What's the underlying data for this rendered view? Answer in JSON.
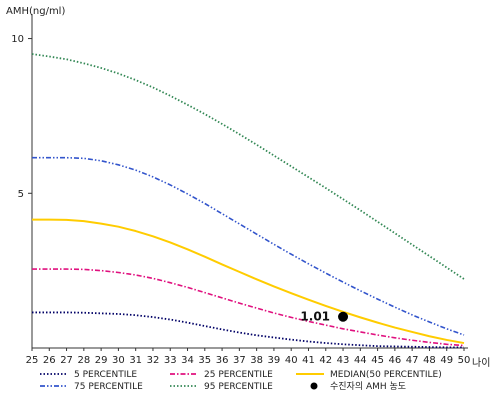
{
  "chart_data": {
    "type": "line",
    "ylabel": "AMH(ng/ml)",
    "xlabel": "나이",
    "x": [
      25,
      26,
      27,
      28,
      29,
      30,
      31,
      32,
      33,
      34,
      35,
      36,
      37,
      38,
      39,
      40,
      41,
      42,
      43,
      44,
      45,
      46,
      47,
      48,
      49,
      50
    ],
    "ylim": [
      0,
      10.6
    ],
    "yticks": [
      5,
      10
    ],
    "series": [
      {
        "name": "5 PERCENTILE",
        "color": "#000066",
        "dash": "dot",
        "values": [
          1.15,
          1.15,
          1.15,
          1.14,
          1.12,
          1.1,
          1.06,
          1.0,
          0.92,
          0.82,
          0.71,
          0.6,
          0.5,
          0.41,
          0.34,
          0.27,
          0.21,
          0.16,
          0.12,
          0.09,
          0.06,
          0.05,
          0.04,
          0.03,
          0.02,
          0.02
        ]
      },
      {
        "name": "25 PERCENTILE",
        "color": "#e0117f",
        "dash": "dashdot",
        "values": [
          2.55,
          2.55,
          2.55,
          2.54,
          2.5,
          2.44,
          2.36,
          2.25,
          2.11,
          1.96,
          1.79,
          1.62,
          1.45,
          1.29,
          1.13,
          0.99,
          0.86,
          0.74,
          0.62,
          0.52,
          0.42,
          0.33,
          0.25,
          0.18,
          0.12,
          0.08
        ]
      },
      {
        "name": "MEDIAN(50 PERCENTILE)",
        "color": "#ffcc00",
        "dash": "solid",
        "values": [
          4.15,
          4.15,
          4.14,
          4.1,
          4.02,
          3.92,
          3.78,
          3.61,
          3.41,
          3.19,
          2.95,
          2.7,
          2.46,
          2.22,
          1.99,
          1.77,
          1.56,
          1.36,
          1.17,
          0.99,
          0.82,
          0.66,
          0.52,
          0.38,
          0.26,
          0.16
        ]
      },
      {
        "name": "75 PERCENTILE",
        "color": "#3355cc",
        "dash": "dashdotdot",
        "values": [
          6.15,
          6.15,
          6.15,
          6.13,
          6.05,
          5.92,
          5.75,
          5.53,
          5.27,
          4.98,
          4.67,
          4.34,
          4.01,
          3.68,
          3.35,
          3.03,
          2.72,
          2.42,
          2.13,
          1.85,
          1.58,
          1.32,
          1.07,
          0.84,
          0.62,
          0.42
        ]
      },
      {
        "name": "95 PERCENTILE",
        "color": "#338855",
        "dash": "dot",
        "values": [
          9.5,
          9.42,
          9.33,
          9.2,
          9.05,
          8.87,
          8.66,
          8.42,
          8.15,
          7.86,
          7.56,
          7.24,
          6.91,
          6.57,
          6.22,
          5.87,
          5.52,
          5.17,
          4.81,
          4.45,
          4.08,
          3.71,
          3.34,
          2.97,
          2.6,
          2.23
        ]
      }
    ],
    "point": {
      "name": "수진자의 AMH 농도",
      "x": 43,
      "y": 1.01,
      "label": "1.01",
      "color": "#000000"
    },
    "legend": {
      "placement": "bottom",
      "items": [
        {
          "label": "5 PERCENTILE",
          "color": "#000066",
          "dash": "dot",
          "kind": "line"
        },
        {
          "label": "25 PERCENTILE",
          "color": "#e0117f",
          "dash": "dashdot",
          "kind": "line"
        },
        {
          "label": "MEDIAN(50 PERCENTILE)",
          "color": "#ffcc00",
          "dash": "solid",
          "kind": "line"
        },
        {
          "label": "75 PERCENTILE",
          "color": "#3355cc",
          "dash": "dashdotdot",
          "kind": "line"
        },
        {
          "label": "95 PERCENTILE",
          "color": "#338855",
          "dash": "dot",
          "kind": "line"
        },
        {
          "label": "수진자의 AMH 농도",
          "color": "#000000",
          "kind": "marker"
        }
      ]
    },
    "grid": false
  }
}
